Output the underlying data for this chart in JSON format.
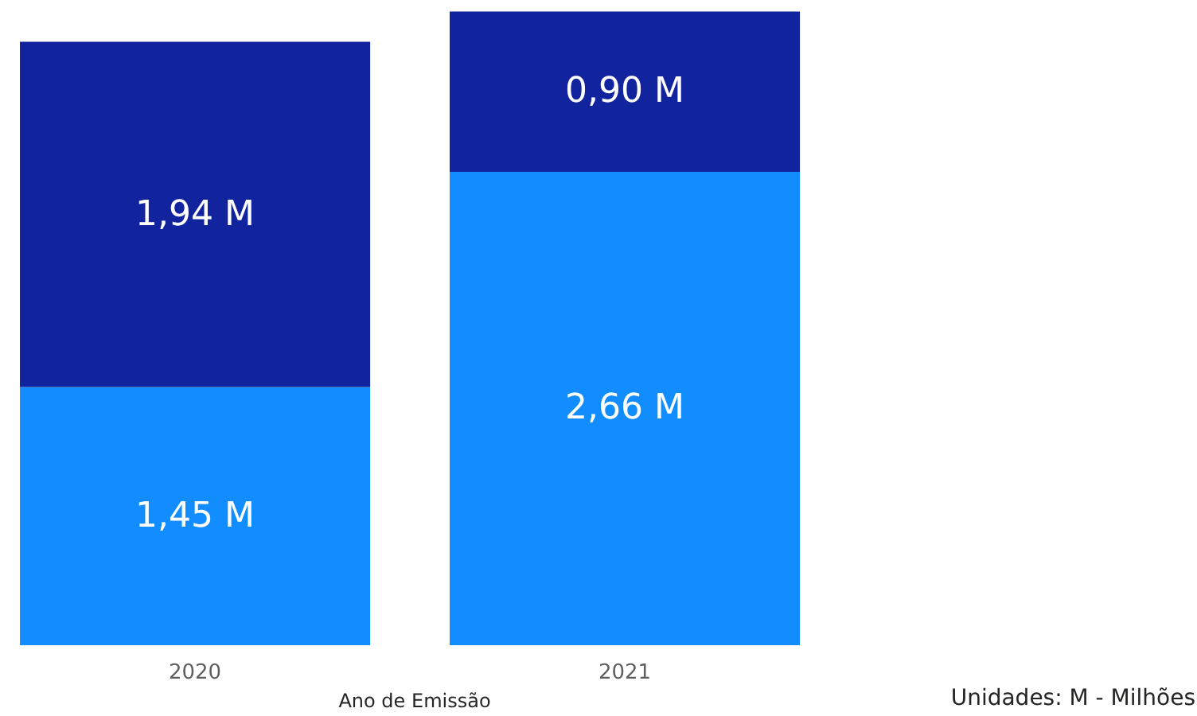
{
  "chart_data": {
    "type": "bar",
    "stacked": true,
    "categories": [
      "2020",
      "2021"
    ],
    "xlabel": "Ano de Emissão",
    "series": [
      {
        "color": "#118dff",
        "values": [
          1.45,
          2.66
        ],
        "value_labels": [
          "1,45 M",
          "2,66 M"
        ]
      },
      {
        "color": "#12239e",
        "values": [
          1.94,
          0.9
        ],
        "value_labels": [
          "1,94 M",
          "0,90 M"
        ]
      }
    ],
    "annotations": [
      "Unidades: M - Milhões"
    ],
    "grid": false
  }
}
